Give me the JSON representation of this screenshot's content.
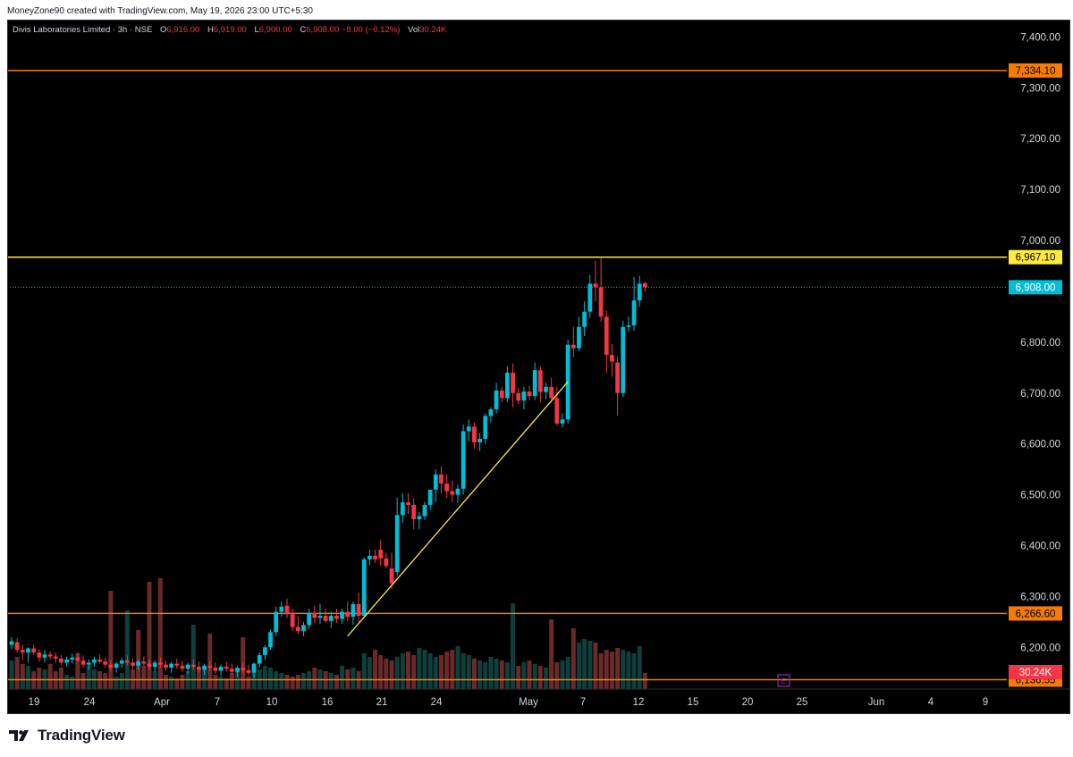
{
  "caption": "MoneyZone90 created with TradingView.com, May 19, 2026 23:00 UTC+5:30",
  "legend": {
    "symbol": "Divis Laboratories Limited · 3h · NSE",
    "o_label": "O",
    "o_value": "6,916.00",
    "h_label": "H",
    "h_value": "6,919.00",
    "l_label": "L",
    "l_value": "6,900.00",
    "c_label": "C",
    "c_value": "6,908.00",
    "change": "−8.00 (−0.12%)",
    "vol_label": "Vol",
    "vol_value": "30.24K"
  },
  "logo_text": "TradingView",
  "colors": {
    "up": "#22ab94",
    "down": "#f23645",
    "up_candle": "#00bcd4",
    "down_candle": "#f23645",
    "vol_up": "#0f3f3c",
    "vol_down": "#6b2a2a",
    "orange": "#f57c00",
    "yellow": "#ffeb3b",
    "last_price": "#00bcd4",
    "vol_label": "#f23645",
    "event": "#9c27b0"
  },
  "chart_data": {
    "type": "candlestick",
    "y_axis_ticks": [
      "7,400.00",
      "7,300.00",
      "7,200.00",
      "7,100.00",
      "7,000.00",
      "6,800.00",
      "6,700.00",
      "6,600.00",
      "6,500.00",
      "6,400.00",
      "6,300.00",
      "6,200.00"
    ],
    "y_tick_values": [
      7400,
      7300,
      7200,
      7100,
      7000,
      6800,
      6700,
      6600,
      6500,
      6400,
      6300,
      6200
    ],
    "ylim": [
      6118,
      7434
    ],
    "x_axis_labels": [
      "19",
      "24",
      "Apr",
      "7",
      "10",
      "16",
      "21",
      "24",
      "May",
      "7",
      "12",
      "15",
      "20",
      "25",
      "Jun",
      "4",
      "9"
    ],
    "horizontal_levels": [
      {
        "label": "7,334.10",
        "value": 7334.1,
        "color": "orange"
      },
      {
        "label": "6,967.10",
        "value": 6967.1,
        "color": "yellow"
      },
      {
        "label": "6,266.60",
        "value": 6266.6,
        "color": "orange"
      },
      {
        "label": "6,136.55",
        "value": 6136.55,
        "color": "orange"
      }
    ],
    "last_price": {
      "label": "6,908.00",
      "value": 6908
    },
    "volume_label": "30.24K",
    "event_marker": "E",
    "trendline": {
      "start": {
        "bar": 61,
        "price": 6222
      },
      "end": {
        "bar": 101,
        "price": 6722
      }
    },
    "candles": [
      [
        6205,
        6220,
        6196,
        6212
      ],
      [
        6210,
        6218,
        6190,
        6195
      ],
      [
        6195,
        6205,
        6175,
        6190
      ],
      [
        6190,
        6200,
        6170,
        6198
      ],
      [
        6198,
        6205,
        6185,
        6190
      ],
      [
        6190,
        6196,
        6172,
        6180
      ],
      [
        6180,
        6195,
        6170,
        6186
      ],
      [
        6186,
        6192,
        6176,
        6182
      ],
      [
        6182,
        6190,
        6170,
        6178
      ],
      [
        6178,
        6185,
        6165,
        6170
      ],
      [
        6170,
        6182,
        6162,
        6176
      ],
      [
        6176,
        6188,
        6168,
        6180
      ],
      [
        6180,
        6190,
        6170,
        6174
      ],
      [
        6174,
        6184,
        6160,
        6166
      ],
      [
        6166,
        6176,
        6156,
        6170
      ],
      [
        6170,
        6182,
        6162,
        6176
      ],
      [
        6176,
        6186,
        6168,
        6172
      ],
      [
        6172,
        6180,
        6160,
        6166
      ],
      [
        6166,
        6174,
        6154,
        6160
      ],
      [
        6160,
        6172,
        6150,
        6168
      ],
      [
        6168,
        6180,
        6160,
        6174
      ],
      [
        6174,
        6184,
        6164,
        6170
      ],
      [
        6170,
        6178,
        6158,
        6164
      ],
      [
        6164,
        6176,
        6156,
        6172
      ],
      [
        6172,
        6182,
        6164,
        6168
      ],
      [
        6168,
        6176,
        6156,
        6162
      ],
      [
        6162,
        6174,
        6152,
        6170
      ],
      [
        6170,
        6180,
        6160,
        6166
      ],
      [
        6166,
        6174,
        6154,
        6160
      ],
      [
        6160,
        6172,
        6150,
        6168
      ],
      [
        6168,
        6178,
        6158,
        6164
      ],
      [
        6164,
        6174,
        6152,
        6158
      ],
      [
        6158,
        6170,
        6148,
        6166
      ],
      [
        6166,
        6176,
        6156,
        6162
      ],
      [
        6162,
        6172,
        6150,
        6156
      ],
      [
        6156,
        6168,
        6146,
        6164
      ],
      [
        6164,
        6174,
        6154,
        6160
      ],
      [
        6160,
        6170,
        6148,
        6154
      ],
      [
        6154,
        6166,
        6144,
        6162
      ],
      [
        6162,
        6172,
        6152,
        6158
      ],
      [
        6158,
        6168,
        6146,
        6152
      ],
      [
        6152,
        6164,
        6142,
        6160
      ],
      [
        6160,
        6170,
        6148,
        6155
      ],
      [
        6155,
        6166,
        6144,
        6150
      ],
      [
        6150,
        6170,
        6140,
        6168
      ],
      [
        6168,
        6190,
        6160,
        6185
      ],
      [
        6185,
        6205,
        6175,
        6200
      ],
      [
        6200,
        6235,
        6195,
        6230
      ],
      [
        6230,
        6280,
        6222,
        6270
      ],
      [
        6270,
        6290,
        6260,
        6280
      ],
      [
        6282,
        6296,
        6258,
        6265
      ],
      [
        6265,
        6276,
        6232,
        6240
      ],
      [
        6240,
        6262,
        6226,
        6232
      ],
      [
        6232,
        6250,
        6222,
        6244
      ],
      [
        6244,
        6276,
        6236,
        6268
      ],
      [
        6268,
        6282,
        6248,
        6258
      ],
      [
        6258,
        6286,
        6246,
        6262
      ],
      [
        6262,
        6276,
        6248,
        6252
      ],
      [
        6252,
        6270,
        6238,
        6262
      ],
      [
        6262,
        6276,
        6248,
        6256
      ],
      [
        6256,
        6276,
        6246,
        6270
      ],
      [
        6270,
        6290,
        6252,
        6260
      ],
      [
        6260,
        6290,
        6244,
        6285
      ],
      [
        6285,
        6308,
        6250,
        6262
      ],
      [
        6262,
        6377,
        6258,
        6373
      ],
      [
        6373,
        6392,
        6362,
        6380
      ],
      [
        6380,
        6392,
        6366,
        6373
      ],
      [
        6392,
        6412,
        6360,
        6375
      ],
      [
        6375,
        6386,
        6356,
        6360
      ],
      [
        6355,
        6386,
        6315,
        6326
      ],
      [
        6348,
        6494,
        6340,
        6460
      ],
      [
        6460,
        6503,
        6445,
        6485
      ],
      [
        6485,
        6503,
        6462,
        6480
      ],
      [
        6480,
        6493,
        6432,
        6452
      ],
      [
        6452,
        6466,
        6432,
        6458
      ],
      [
        6458,
        6486,
        6450,
        6480
      ],
      [
        6480,
        6510,
        6470,
        6510
      ],
      [
        6510,
        6550,
        6486,
        6540
      ],
      [
        6540,
        6556,
        6502,
        6522
      ],
      [
        6522,
        6540,
        6494,
        6507
      ],
      [
        6507,
        6528,
        6486,
        6500
      ],
      [
        6500,
        6520,
        6484,
        6512
      ],
      [
        6512,
        6638,
        6500,
        6625
      ],
      [
        6625,
        6648,
        6605,
        6634
      ],
      [
        6634,
        6642,
        6590,
        6603
      ],
      [
        6603,
        6622,
        6586,
        6610
      ],
      [
        6610,
        6660,
        6600,
        6655
      ],
      [
        6655,
        6672,
        6642,
        6668
      ],
      [
        6668,
        6720,
        6660,
        6705
      ],
      [
        6705,
        6712,
        6682,
        6690
      ],
      [
        6690,
        6752,
        6682,
        6740
      ],
      [
        6740,
        6758,
        6672,
        6700
      ],
      [
        6700,
        6710,
        6678,
        6685
      ],
      [
        6685,
        6712,
        6668,
        6703
      ],
      [
        6703,
        6714,
        6686,
        6694
      ],
      [
        6694,
        6760,
        6686,
        6745
      ],
      [
        6745,
        6752,
        6682,
        6702
      ],
      [
        6702,
        6720,
        6688,
        6712
      ],
      [
        6712,
        6730,
        6686,
        6690
      ],
      [
        6690,
        6712,
        6636,
        6640
      ],
      [
        6640,
        6660,
        6632,
        6648
      ],
      [
        6648,
        6805,
        6640,
        6795
      ],
      [
        6795,
        6830,
        6770,
        6788
      ],
      [
        6788,
        6850,
        6782,
        6830
      ],
      [
        6830,
        6880,
        6812,
        6860
      ],
      [
        6860,
        6932,
        6848,
        6915
      ],
      [
        6915,
        6960,
        6880,
        6908
      ],
      [
        6908,
        6965,
        6840,
        6850
      ],
      [
        6850,
        6862,
        6740,
        6775
      ],
      [
        6775,
        6796,
        6732,
        6762
      ],
      [
        6760,
        6772,
        6656,
        6700
      ],
      [
        6700,
        6842,
        6692,
        6830
      ],
      [
        6830,
        6850,
        6820,
        6833
      ],
      [
        6833,
        6928,
        6822,
        6882
      ],
      [
        6882,
        6930,
        6870,
        6915
      ],
      [
        6916,
        6919,
        6900,
        6908
      ]
    ],
    "volumes": [
      0.16,
      0.18,
      0.14,
      0.13,
      0.1,
      0.12,
      0.11,
      0.09,
      0.1,
      0.12,
      0.08,
      0.07,
      0.1,
      0.09,
      0.13,
      0.11,
      0.1,
      0.09,
      0.08,
      0.07,
      0.09,
      0.1,
      0.11,
      0.12,
      0.13,
      0.11,
      0.1,
      0.09,
      0.08,
      0.07,
      0.06,
      0.08,
      0.1,
      0.09,
      0.11,
      0.12,
      0.1,
      0.08,
      0.07,
      0.06,
      0.09,
      0.1,
      0.08,
      0.07,
      0.09,
      0.11,
      0.13,
      0.12,
      0.1,
      0.09,
      0.08,
      0.07,
      0.08,
      0.09,
      0.1,
      0.12,
      0.11,
      0.1,
      0.09,
      0.08,
      0.13,
      0.11,
      0.12,
      0.1,
      0.2,
      0.18,
      0.22,
      0.19,
      0.17,
      0.16,
      0.18,
      0.2,
      0.21,
      0.19,
      0.23,
      0.22,
      0.2,
      0.18,
      0.19,
      0.21,
      0.22,
      0.24,
      0.2,
      0.19,
      0.17,
      0.16,
      0.15,
      0.18,
      0.17,
      0.16,
      0.15,
      0.14,
      0.13,
      0.15,
      0.16,
      0.14,
      0.13,
      0.12,
      0.14,
      0.15,
      0.16,
      0.18,
      0.34,
      0.26,
      0.28,
      0.27,
      0.26,
      0.2,
      0.22,
      0.21,
      0.23,
      0.22,
      0.21,
      0.2,
      0.24,
      0.09
    ],
    "big_volumes": [
      {
        "bar": 2,
        "v": 0.05,
        "dir": "up"
      },
      {
        "bar": 7,
        "v": 0.14,
        "dir": "down"
      },
      {
        "bar": 12,
        "v": 0.2,
        "dir": "down"
      },
      {
        "bar": 18,
        "v": 0.55,
        "dir": "down"
      },
      {
        "bar": 21,
        "v": 0.44,
        "dir": "up"
      },
      {
        "bar": 25,
        "v": 0.6,
        "dir": "down"
      },
      {
        "bar": 27,
        "v": 0.62,
        "dir": "down"
      },
      {
        "bar": 23,
        "v": 0.33,
        "dir": "down"
      },
      {
        "bar": 33,
        "v": 0.36,
        "dir": "up"
      },
      {
        "bar": 36,
        "v": 0.31,
        "dir": "down"
      },
      {
        "bar": 42,
        "v": 0.29,
        "dir": "down"
      },
      {
        "bar": 91,
        "v": 0.48,
        "dir": "up"
      },
      {
        "bar": 98,
        "v": 0.39,
        "dir": "down"
      }
    ]
  }
}
